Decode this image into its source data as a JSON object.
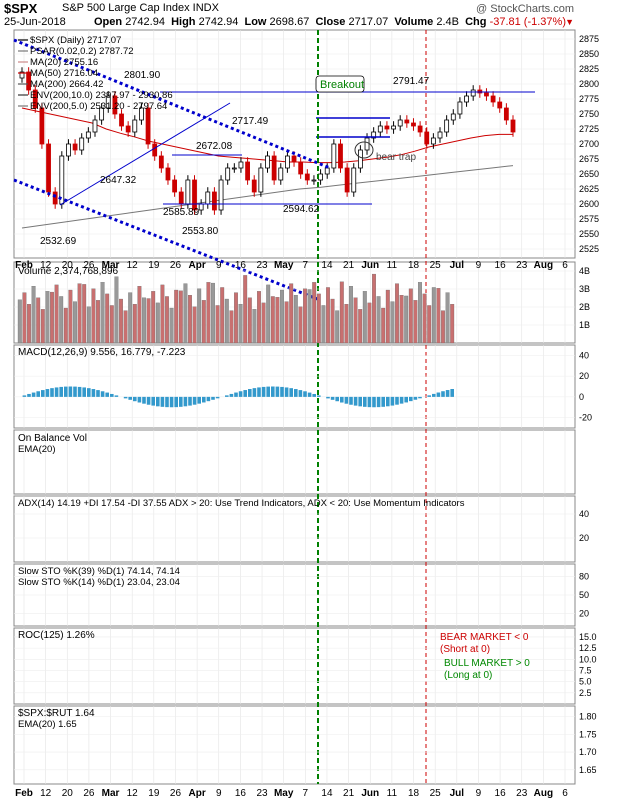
{
  "header": {
    "symbol": "$SPX",
    "name": "S&P 500 Large Cap Index  INDX",
    "brand": "@ StockCharts.com",
    "date": "25-Jun-2018",
    "open_label": "Open",
    "open": "2742.94",
    "high_label": "High",
    "high": "2742.94",
    "low_label": "Low",
    "low": "2698.67",
    "close_label": "Close",
    "close": "2717.07",
    "volume_label": "Volume",
    "volume": "2.4B",
    "chg_label": "Chg",
    "chg": "-37.81 (-1.37%)",
    "chg_arrow": "▼"
  },
  "chart_data": {
    "type": "line",
    "title": "$SPX S&P 500 Large Cap Index INDX",
    "colors": {
      "price": "#000000",
      "ma50": "#cc0000",
      "ma200": "#777777",
      "trend": "#0000cc",
      "breakout": "#008000",
      "redline": "#cc0000",
      "vol_up": "#999999",
      "vol_down": "#c87070",
      "macd_hist": "#3399cc"
    },
    "x_labels": [
      "Feb",
      "12",
      "20",
      "26",
      "Mar",
      "12",
      "19",
      "26",
      "Apr",
      "9",
      "16",
      "23",
      "May",
      "7",
      "14",
      "21",
      "Jun",
      "11",
      "18",
      "25",
      "Jul",
      "9",
      "16",
      "23",
      "Aug",
      "6"
    ],
    "panels": {
      "price": {
        "legend": [
          "$SPX (Daily) 2717.07",
          "PSAR(0.02,0.2) 2787.72",
          "MA(20) 2755.16",
          "MA(50) 2716.04",
          "MA(200) 2664.42",
          "ENV(200,10.0) 2397.97 - 2930.86",
          "ENV(200,5.0) 2531.20 - 2797.64"
        ],
        "ylim": [
          2510,
          2890
        ],
        "yticks": [
          2875,
          2850,
          2825,
          2800,
          2775,
          2750,
          2725,
          2700,
          2675,
          2650,
          2625,
          2600,
          2575,
          2550,
          2525
        ],
        "annotations": [
          "2801.90",
          "2717.49",
          "2672.08",
          "2647.32",
          "2585.89",
          "2594.62",
          "2553.80",
          "2532.69",
          "2791.47",
          "Breakout",
          "bear trap"
        ],
        "close": [
          2820,
          2790,
          2760,
          2700,
          2620,
          2600,
          2680,
          2700,
          2690,
          2710,
          2720,
          2740,
          2760,
          2780,
          2750,
          2730,
          2720,
          2740,
          2760,
          2700,
          2680,
          2660,
          2640,
          2620,
          2600,
          2640,
          2590,
          2600,
          2620,
          2590,
          2640,
          2660,
          2660,
          2670,
          2640,
          2620,
          2660,
          2680,
          2640,
          2660,
          2680,
          2670,
          2650,
          2640,
          2640,
          2650,
          2660,
          2700,
          2660,
          2620,
          2660,
          2690,
          2710,
          2720,
          2730,
          2725,
          2730,
          2740,
          2735,
          2730,
          2720,
          2700,
          2710,
          2720,
          2740,
          2750,
          2770,
          2780,
          2790,
          2785,
          2780,
          2770,
          2760,
          2740,
          2720
        ],
        "ma50": [
          2760,
          2755,
          2750,
          2745,
          2740,
          2735,
          2725,
          2718,
          2712,
          2705,
          2700,
          2695,
          2690,
          2685,
          2680,
          2678,
          2676,
          2674,
          2672,
          2670,
          2670,
          2669,
          2669,
          2670,
          2672,
          2675,
          2678,
          2682,
          2688,
          2695,
          2700,
          2705,
          2710,
          2714,
          2716,
          2716
        ],
        "ma200": [
          2560,
          2565,
          2570,
          2575,
          2580,
          2585,
          2590,
          2595,
          2600,
          2605,
          2610,
          2615,
          2620,
          2625,
          2628,
          2632,
          2636,
          2640,
          2644,
          2648,
          2652,
          2656,
          2660,
          2664
        ]
      },
      "volume": {
        "label": "Volume 2,374,768,896",
        "yticks": [
          "4B",
          "3B",
          "2B",
          "1B"
        ],
        "ylim": [
          0,
          4.5
        ]
      },
      "macd": {
        "label": "MACD(12,26,9) 9.556, 16.779, -7.223",
        "yticks": [
          40,
          20,
          0,
          -20
        ],
        "ylim": [
          -30,
          50
        ]
      },
      "obv": {
        "labels": [
          "On Balance Vol",
          "EMA(20)"
        ]
      },
      "adx": {
        "label": "ADX(14) 14.19 +DI 17.54 -DI 37.55 ADX > 20: Use Trend Indicators, ADX < 20: Use Momentum Indicators",
        "yticks": [
          40,
          20
        ],
        "ylim": [
          0,
          55
        ]
      },
      "sto": {
        "labels": [
          "Slow STO %K(39) %D(1) 74.14, 74.14",
          "Slow STO %K(14) %D(1) 23.04, 23.04"
        ],
        "yticks": [
          80,
          50,
          20
        ],
        "ylim": [
          0,
          100
        ]
      },
      "roc": {
        "label": "ROC(125) 1.26%",
        "yticks": [
          15.0,
          12.5,
          10.0,
          7.5,
          5.0,
          2.5
        ],
        "ylim": [
          0,
          17
        ],
        "notes": [
          "BEAR MARKET < 0",
          "(Short at 0)",
          "BULL MARKET > 0",
          "(Long at 0)"
        ]
      },
      "ratio": {
        "labels": [
          "$SPX:$RUT 1.64",
          "EMA(20) 1.65"
        ],
        "yticks": [
          1.8,
          1.75,
          1.7,
          1.65
        ],
        "ylim": [
          1.61,
          1.83
        ]
      }
    }
  }
}
